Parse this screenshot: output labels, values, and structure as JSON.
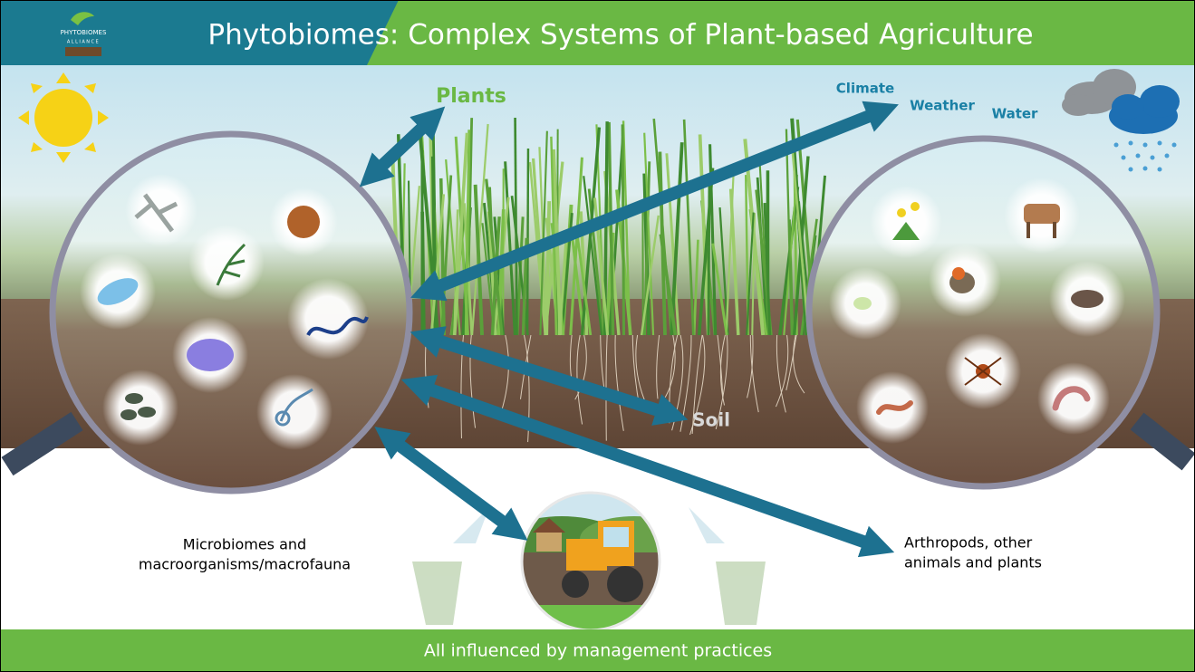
{
  "header": {
    "logo": {
      "name": "PHYTOBIOMES",
      "subtitle": "ALLIANCE"
    },
    "title": "Phytobiomes: Complex Systems of Plant-based Agriculture"
  },
  "labels": {
    "plants": "Plants",
    "climate": "Climate",
    "weather": "Weather",
    "water": "Water",
    "soil": "Soil"
  },
  "captions": {
    "left": [
      "Microbiomes and",
      "macroorganisms/macrofauna"
    ],
    "right": [
      "Arthropods, other",
      "animals and plants"
    ]
  },
  "footer": "All influenced by management practices"
}
